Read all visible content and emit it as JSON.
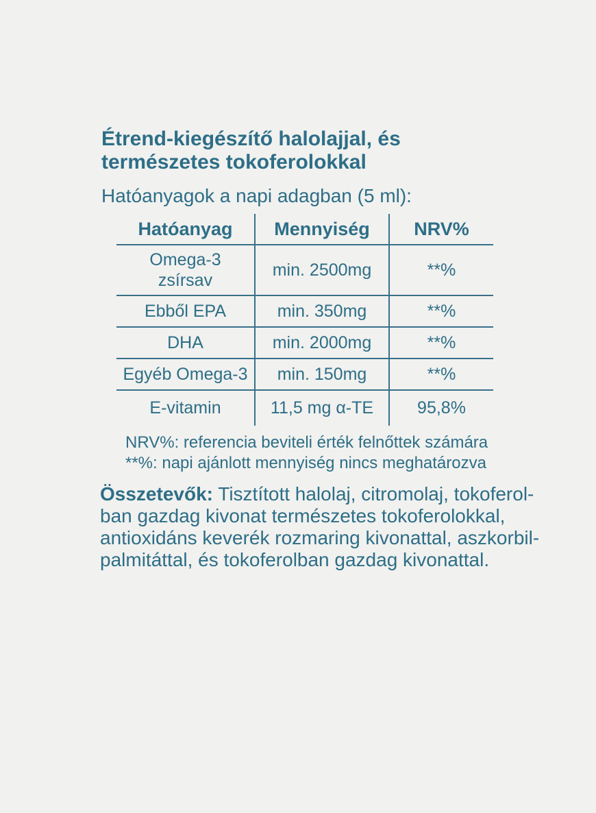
{
  "colors": {
    "text": "#2d6e87",
    "background": "#f1f1ef",
    "table_line": "#38708a"
  },
  "title": {
    "line1": "Étrend-kiegészítő halolajjal, és",
    "line2": "természetes tokoferolokkal"
  },
  "subtitle": "Hatóanyagok a napi adagban (5 ml):",
  "table": {
    "headers": [
      "Hatóanyag",
      "Mennyiség",
      "NRV%"
    ],
    "rows": [
      {
        "name": "Omega-3 zsírsav",
        "amount": "min. 2500mg",
        "nrv": "**%"
      },
      {
        "name": "Ebből EPA",
        "amount": "min. 350mg",
        "nrv": "**%"
      },
      {
        "name": "DHA",
        "amount": "min. 2000mg",
        "nrv": "**%"
      },
      {
        "name": "Egyéb Omega-3",
        "amount": "min. 150mg",
        "nrv": "**%"
      },
      {
        "name": "E-vitamin",
        "amount": "11,5 mg α-TE",
        "nrv": "95,8%"
      }
    ]
  },
  "footnotes": [
    "NRV%: referencia beviteli érték felnőttek számára",
    "**%: napi ajánlott mennyiség nincs meghatározva"
  ],
  "ingredients": {
    "label": "Összetevők:",
    "line1_rest": "Tisztított halolaj, citromolaj, tokoferol-",
    "line2": "ban gazdag kivonat természetes tokoferolokkal,",
    "line3": "antioxidáns keverék rozmaring kivonattal, aszkorbil-",
    "line4": "palmitáttal, és tokoferolban gazdag kivonattal."
  }
}
